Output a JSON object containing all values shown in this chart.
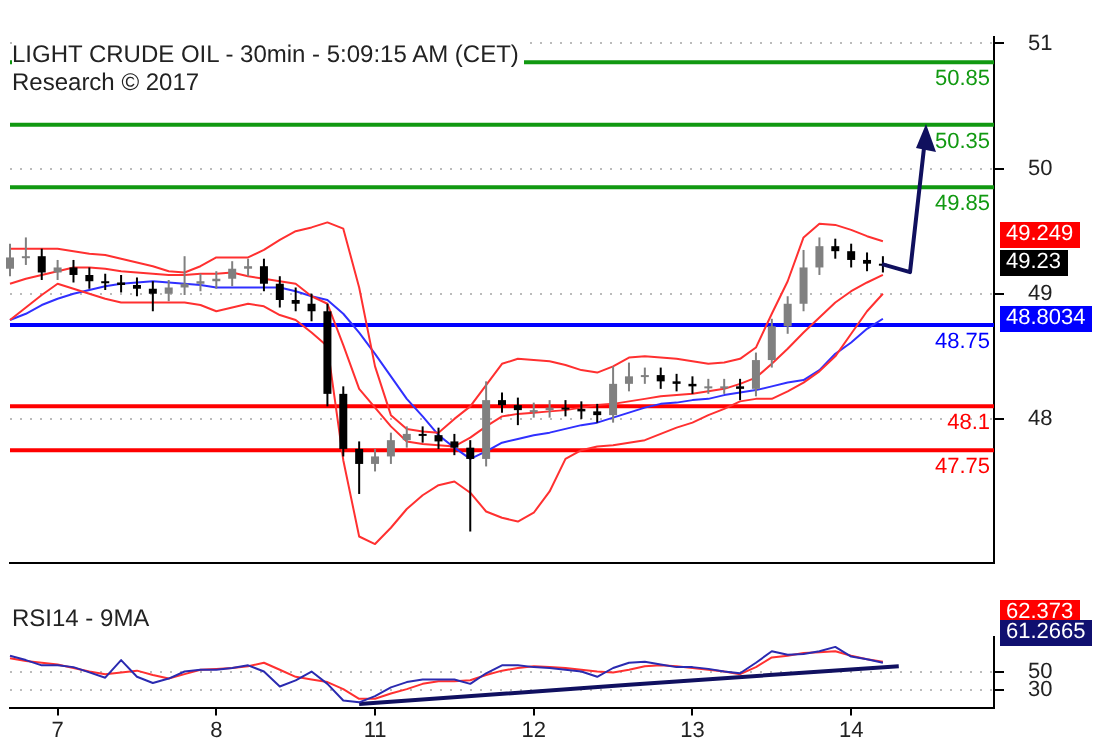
{
  "chart_data": [
    {
      "type": "candlestick",
      "title": "LIGHT CRUDE OIL - 30min - 5:09:15 AM (CET)",
      "subtitle": "Research © 2017",
      "colors": [
        "#808080",
        "#808080",
        "#000000",
        "#808080",
        "#000000",
        "#000000",
        "#000000",
        "#000000",
        "#000000",
        "#000000",
        "#808080",
        "#808080",
        "#808080",
        "#808080",
        "#808080",
        "#808080",
        "#000000",
        "#000000",
        "#000000",
        "#000000",
        "#000000",
        "#000000",
        "#000000",
        "#808080",
        "#808080",
        "#808080",
        "#000000",
        "#000000",
        "#000000",
        "#000000",
        "#808080",
        "#000000",
        "#000000",
        "#808080",
        "#808080",
        "#000000",
        "#000000",
        "#000000",
        "#808080",
        "#808080",
        "#808080",
        "#000000",
        "#000000",
        "#000000",
        "#808080",
        "#808080",
        "#000000",
        "#808080",
        "#808080",
        "#808080",
        "#808080",
        "#808080",
        "#000000",
        "#000000",
        "#000000",
        "#000000",
        null,
        null,
        null,
        null,
        null,
        null,
        null
      ],
      "categories": [
        null,
        null,
        null,
        "7",
        null,
        null,
        null,
        null,
        null,
        null,
        null,
        null,
        null,
        "8",
        null,
        null,
        null,
        null,
        null,
        null,
        null,
        null,
        null,
        "11",
        null,
        null,
        null,
        null,
        null,
        null,
        null,
        null,
        null,
        "12",
        null,
        null,
        null,
        null,
        null,
        null,
        null,
        null,
        null,
        "13",
        null,
        null,
        null,
        null,
        null,
        null,
        null,
        null,
        null,
        "14",
        null,
        null,
        null,
        null,
        null,
        null,
        null,
        null,
        null
      ],
      "ohlc": [
        [
          49.2,
          49.4,
          49.14,
          49.29
        ],
        [
          49.29,
          49.45,
          49.23,
          49.3
        ],
        [
          49.3,
          49.36,
          49.11,
          49.17
        ],
        [
          49.17,
          49.27,
          49.11,
          49.21
        ],
        [
          49.21,
          49.27,
          49.09,
          49.15
        ],
        [
          49.15,
          49.21,
          49.04,
          49.1
        ],
        [
          49.1,
          49.16,
          49.03,
          49.09
        ],
        [
          49.09,
          49.15,
          49.01,
          49.07
        ],
        [
          49.07,
          49.13,
          48.98,
          49.04
        ],
        [
          49.04,
          49.1,
          48.86,
          49.0
        ],
        [
          49.0,
          49.11,
          48.94,
          49.05
        ],
        [
          49.05,
          49.3,
          48.99,
          49.08
        ],
        [
          49.08,
          49.16,
          49.02,
          49.1
        ],
        [
          49.1,
          49.18,
          49.04,
          49.12
        ],
        [
          49.12,
          49.26,
          49.06,
          49.2
        ],
        [
          49.2,
          49.28,
          49.14,
          49.22
        ],
        [
          49.22,
          49.28,
          49.02,
          49.08
        ],
        [
          49.08,
          49.14,
          48.89,
          48.95
        ],
        [
          48.95,
          49.05,
          48.86,
          48.92
        ],
        [
          48.92,
          49.0,
          48.78,
          48.86
        ],
        [
          48.86,
          48.92,
          48.1,
          48.2
        ],
        [
          48.2,
          48.26,
          47.7,
          47.76
        ],
        [
          47.76,
          47.82,
          47.4,
          47.64
        ],
        [
          47.64,
          47.76,
          47.58,
          47.7
        ],
        [
          47.7,
          47.89,
          47.64,
          47.83
        ],
        [
          47.83,
          47.94,
          47.77,
          47.88
        ],
        [
          47.88,
          47.94,
          47.81,
          47.87
        ],
        [
          47.87,
          47.93,
          47.76,
          47.82
        ],
        [
          47.82,
          47.88,
          47.71,
          47.77
        ],
        [
          47.77,
          47.83,
          47.1,
          47.68
        ],
        [
          47.68,
          48.3,
          47.62,
          48.15
        ],
        [
          48.15,
          48.21,
          48.05,
          48.11
        ],
        [
          48.11,
          48.17,
          47.95,
          48.07
        ],
        [
          48.07,
          48.13,
          48.01,
          48.07
        ],
        [
          48.07,
          48.15,
          48.01,
          48.09
        ],
        [
          48.09,
          48.15,
          48.02,
          48.08
        ],
        [
          48.08,
          48.14,
          48.0,
          48.06
        ],
        [
          48.06,
          48.12,
          47.97,
          48.03
        ],
        [
          48.03,
          48.42,
          47.97,
          48.28
        ],
        [
          48.28,
          48.45,
          48.22,
          48.34
        ],
        [
          48.34,
          48.41,
          48.28,
          48.35
        ],
        [
          48.35,
          48.41,
          48.24,
          48.3
        ],
        [
          48.3,
          48.36,
          48.22,
          48.28
        ],
        [
          48.28,
          48.34,
          48.2,
          48.26
        ],
        [
          48.26,
          48.32,
          48.2,
          48.26
        ],
        [
          48.26,
          48.32,
          48.2,
          48.26
        ],
        [
          48.26,
          48.32,
          48.15,
          48.24
        ],
        [
          48.24,
          48.53,
          48.18,
          48.47
        ],
        [
          48.47,
          48.8,
          48.41,
          48.74
        ],
        [
          48.74,
          48.98,
          48.68,
          48.92
        ],
        [
          48.92,
          49.35,
          48.86,
          49.21
        ],
        [
          49.21,
          49.45,
          49.15,
          49.38
        ],
        [
          49.38,
          49.44,
          49.28,
          49.34
        ],
        [
          49.34,
          49.4,
          49.21,
          49.27
        ],
        [
          49.27,
          49.33,
          49.18,
          49.24
        ],
        [
          49.24,
          49.3,
          49.17,
          49.23
        ],
        null,
        null,
        null,
        null,
        null,
        null,
        null
      ],
      "series": [
        {
          "type": "line",
          "color": "#ff3030",
          "values": [
            49.36,
            49.36,
            49.36,
            49.36,
            49.34,
            49.32,
            49.31,
            49.28,
            49.25,
            49.22,
            49.18,
            49.17,
            49.22,
            49.29,
            49.29,
            49.29,
            49.35,
            49.43,
            49.5,
            49.53,
            49.57,
            49.52,
            49.05,
            48.42,
            48.03,
            47.92,
            47.9,
            47.89,
            48.0,
            48.1,
            48.27,
            48.44,
            48.48,
            48.47,
            48.46,
            48.43,
            48.39,
            48.37,
            48.42,
            48.49,
            48.5,
            48.49,
            48.48,
            48.46,
            48.44,
            48.45,
            48.48,
            48.57,
            48.84,
            49.1,
            49.45,
            49.56,
            49.55,
            49.51,
            49.46,
            49.42,
            null,
            null,
            null,
            null,
            null,
            null,
            null
          ]
        },
        {
          "type": "line",
          "color": "#ff3030",
          "values": [
            49.08,
            49.12,
            49.15,
            49.18,
            49.21,
            49.21,
            49.2,
            49.18,
            49.17,
            49.16,
            49.15,
            49.15,
            49.16,
            49.16,
            49.17,
            49.14,
            49.12,
            49.1,
            49.08,
            48.98,
            48.92,
            48.59,
            48.24,
            48.09,
            47.94,
            47.82,
            47.8,
            47.79,
            47.78,
            47.85,
            47.94,
            48.02,
            48.04,
            48.05,
            48.06,
            48.07,
            48.09,
            48.11,
            48.12,
            48.14,
            48.16,
            48.18,
            48.19,
            48.2,
            48.22,
            48.24,
            48.28,
            48.33,
            48.44,
            48.56,
            48.69,
            48.81,
            48.93,
            49.02,
            49.09,
            49.15,
            null,
            null,
            null,
            null,
            null,
            null,
            null
          ]
        },
        {
          "type": "line",
          "color": "#ff3030",
          "values": [
            48.79,
            48.89,
            48.99,
            49.08,
            49.04,
            49.0,
            48.96,
            48.93,
            48.93,
            48.93,
            48.93,
            48.93,
            48.91,
            48.86,
            48.89,
            48.92,
            48.9,
            48.83,
            48.79,
            48.69,
            48.58,
            47.67,
            47.06,
            47.0,
            47.13,
            47.28,
            47.39,
            47.47,
            47.5,
            47.41,
            47.26,
            47.21,
            47.18,
            47.25,
            47.42,
            47.68,
            47.75,
            47.78,
            47.79,
            47.81,
            47.83,
            47.88,
            47.93,
            47.97,
            48.03,
            48.08,
            48.14,
            48.16,
            48.16,
            48.22,
            48.29,
            48.38,
            48.5,
            48.68,
            48.86,
            49.0,
            null,
            null,
            null,
            null,
            null,
            null,
            null
          ]
        },
        {
          "type": "line",
          "color": "#3030ff",
          "values": [
            48.79,
            48.84,
            48.91,
            48.96,
            49.0,
            49.03,
            49.06,
            49.08,
            49.09,
            49.1,
            49.09,
            49.08,
            49.07,
            49.05,
            49.05,
            49.05,
            49.05,
            49.05,
            49.02,
            48.98,
            48.95,
            48.84,
            48.69,
            48.52,
            48.34,
            48.16,
            48.02,
            47.87,
            47.77,
            47.68,
            47.74,
            47.81,
            47.84,
            47.87,
            47.89,
            47.92,
            47.95,
            47.97,
            48.01,
            48.05,
            48.09,
            48.12,
            48.13,
            48.15,
            48.16,
            48.19,
            48.21,
            48.23,
            48.26,
            48.29,
            48.31,
            48.39,
            48.52,
            48.61,
            48.72,
            48.8,
            null,
            null,
            null,
            null,
            null,
            null,
            null
          ]
        }
      ],
      "ylim": [
        46.85,
        51.05
      ],
      "yticks": [
        48,
        49,
        50,
        51
      ],
      "ref_lines": [
        {
          "axis": "y",
          "value": 50.85,
          "label": "50.85",
          "color": "#119911"
        },
        {
          "axis": "y",
          "value": 50.35,
          "label": "50.35",
          "color": "#119911"
        },
        {
          "axis": "y",
          "value": 49.85,
          "label": "49.85",
          "color": "#119911"
        },
        {
          "axis": "y",
          "value": 48.75,
          "label": "48.75",
          "color": "#0000ff"
        },
        {
          "axis": "y",
          "value": 48.1,
          "label": "48.1",
          "color": "#ff0000"
        },
        {
          "axis": "y",
          "value": 47.75,
          "label": "47.75",
          "color": "#ff0000"
        }
      ],
      "annotations": [
        "49.249",
        "49.23",
        "48.8034"
      ],
      "grid": "y",
      "tick_labels": "y"
    },
    {
      "type": "line",
      "title": "RSI14 - 9MA",
      "categories": [
        null,
        null,
        null,
        "7",
        null,
        null,
        null,
        null,
        null,
        null,
        null,
        null,
        null,
        "8",
        null,
        null,
        null,
        null,
        null,
        null,
        null,
        null,
        null,
        "11",
        null,
        null,
        null,
        null,
        null,
        null,
        null,
        null,
        null,
        "12",
        null,
        null,
        null,
        null,
        null,
        null,
        null,
        null,
        null,
        "13",
        null,
        null,
        null,
        null,
        null,
        null,
        null,
        null,
        null,
        "14",
        null,
        null,
        null,
        null,
        null,
        null,
        null,
        null,
        null
      ],
      "series": [
        {
          "color": "#2a2ab0",
          "values": [
            69,
            64,
            58,
            58,
            56,
            50,
            44,
            64,
            45,
            38,
            43,
            51,
            53,
            53,
            55,
            58,
            51,
            34,
            41,
            51,
            37,
            18,
            16,
            23,
            33,
            39,
            42,
            42,
            42,
            37,
            49,
            58,
            58,
            56,
            55,
            53,
            51,
            45,
            55,
            61,
            62,
            59,
            56,
            56,
            54,
            51,
            49,
            61,
            74,
            70,
            71,
            74,
            79,
            68,
            65,
            61,
            null,
            null,
            null,
            null,
            null,
            null,
            null
          ]
        },
        {
          "color": "#ff3030",
          "values": [
            66,
            63,
            61,
            59,
            55,
            51,
            48,
            50,
            52,
            47,
            43,
            48,
            53,
            54,
            55,
            57,
            61,
            53,
            45,
            42,
            39,
            31,
            20,
            20,
            26,
            31,
            37,
            40,
            40,
            41,
            47,
            52,
            55,
            57,
            56,
            55,
            53,
            51,
            50,
            53,
            57,
            58,
            57,
            55,
            53,
            51,
            48,
            56,
            67,
            69,
            72,
            73,
            74,
            69,
            65,
            62,
            null,
            null,
            null,
            null,
            null,
            null,
            null
          ]
        },
        {
          "color": "#101060",
          "values": [
            null,
            null,
            null,
            null,
            null,
            null,
            null,
            null,
            null,
            null,
            null,
            null,
            null,
            null,
            null,
            null,
            null,
            null,
            null,
            null,
            null,
            null,
            14,
            null,
            null,
            null,
            null,
            null,
            null,
            null,
            null,
            null,
            null,
            null,
            null,
            null,
            null,
            null,
            null,
            36,
            null,
            null,
            null,
            null,
            null,
            null,
            null,
            null,
            null,
            null,
            null,
            null,
            null,
            null,
            null,
            null,
            57,
            null,
            null,
            null,
            null,
            null,
            null
          ]
        }
      ],
      "ylim": [
        10,
        90
      ],
      "yticks": [
        30,
        50
      ],
      "annotations": [
        "62.373",
        "61.2665"
      ],
      "grid": "y"
    }
  ]
}
